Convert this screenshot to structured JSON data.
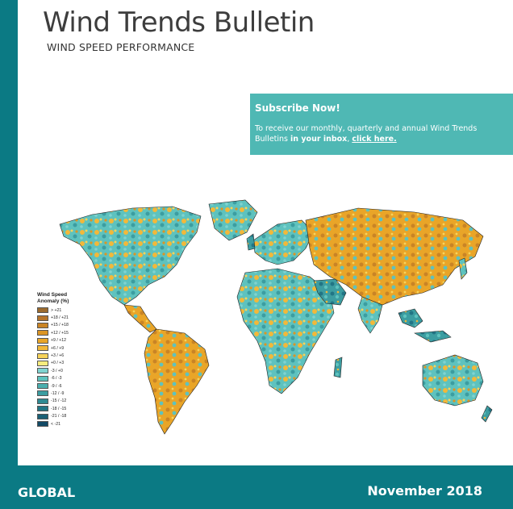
{
  "header": {
    "title": "Wind Trends Bulletin",
    "subtitle": "WIND SPEED PERFORMANCE"
  },
  "subscribe": {
    "heading": "Subscribe Now!",
    "body_prefix": "To receive our monthly, quarterly and annual Wind Trends Bulletins ",
    "body_bold1": "in your inbox",
    "body_mid": ", ",
    "link_text": "click here."
  },
  "legend": {
    "title_line1": "Wind Speed",
    "title_line2": "Anomaly (%)",
    "items": [
      {
        "label": "> +21",
        "color": "#9c6b2e"
      },
      {
        "label": "+18 / +21",
        "color": "#b5742a"
      },
      {
        "label": "+15 / +18",
        "color": "#c98426"
      },
      {
        "label": "+12 / +15",
        "color": "#db9524"
      },
      {
        "label": "+9 / +12",
        "color": "#e9a528"
      },
      {
        "label": "+6 / +9",
        "color": "#f2b83a"
      },
      {
        "label": "+3 / +6",
        "color": "#f7d35a"
      },
      {
        "label": "+0 / +3",
        "color": "#f6ec7e"
      },
      {
        "label": "-3 / +0",
        "color": "#7fd3d0"
      },
      {
        "label": "-6 / -3",
        "color": "#5ec2be"
      },
      {
        "label": "-9 / -6",
        "color": "#4aaeae"
      },
      {
        "label": "-12 / -9",
        "color": "#3c9da1"
      },
      {
        "label": "-15 / -12",
        "color": "#2f8a93"
      },
      {
        "label": "-18 / -15",
        "color": "#227585"
      },
      {
        "label": "-21 / -18",
        "color": "#1a6076"
      },
      {
        "label": "< -21",
        "color": "#134a66"
      }
    ]
  },
  "footer": {
    "region": "GLOBAL",
    "date": "November 2018"
  },
  "colors": {
    "brand": "#0b7a84",
    "subscribe_bg": "#4fb8b4"
  }
}
